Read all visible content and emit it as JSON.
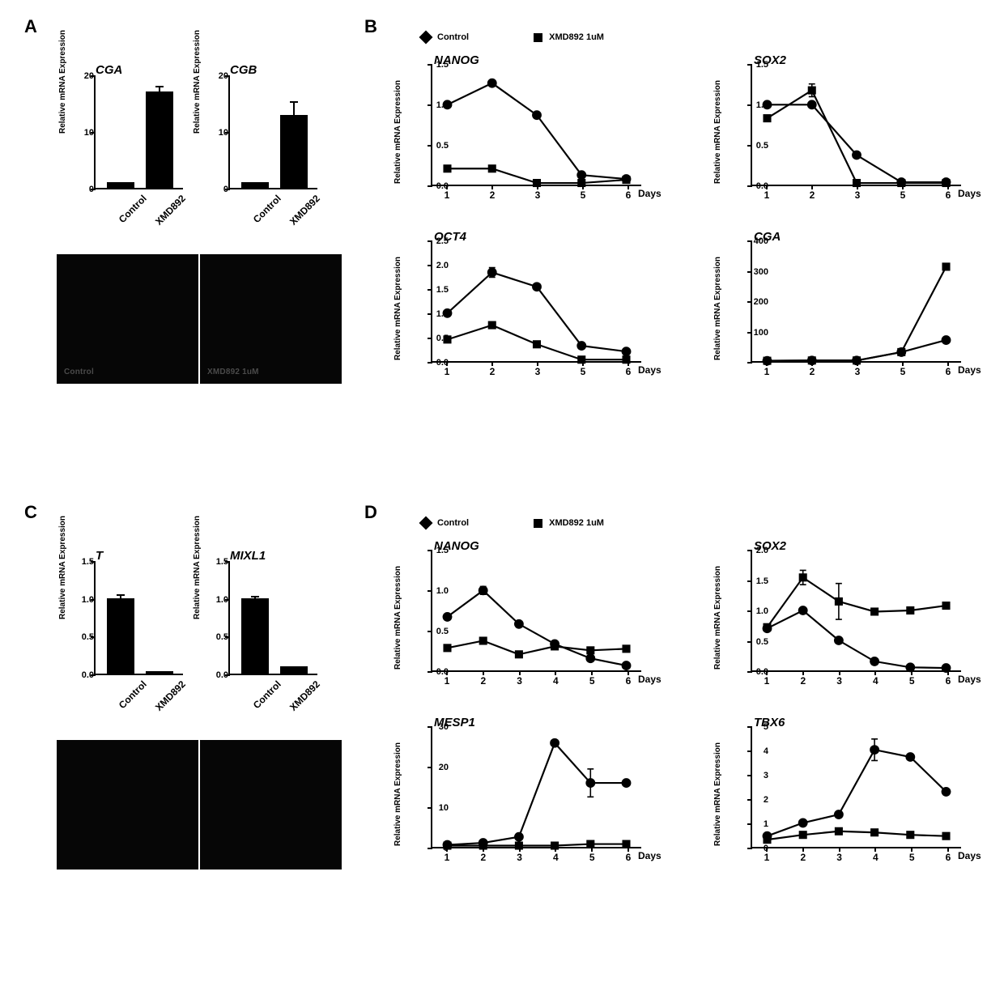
{
  "global": {
    "ylabel": "Relative mRNA Expression",
    "xlabel_days": "Days",
    "color": "#000000",
    "background": "#ffffff",
    "axis_width": 2.5,
    "line_width": 2.2,
    "marker_size": 6,
    "font_axis": 11,
    "font_title": 15
  },
  "legend": {
    "control": {
      "label": "Control",
      "marker": "diamond"
    },
    "treated": {
      "label": "XMD892 1uM",
      "marker": "square"
    }
  },
  "panels": {
    "A": {
      "label": "A",
      "bars": [
        {
          "title": "CGA",
          "categories": [
            "Control",
            "XMD892"
          ],
          "values": [
            1.0,
            17.0
          ],
          "errors": [
            0.0,
            1.0
          ],
          "ylim": [
            0,
            20
          ],
          "yticks": [
            0,
            10,
            20
          ],
          "bar_color": "#000000"
        },
        {
          "title": "CGB",
          "categories": [
            "Control",
            "XMD892"
          ],
          "values": [
            1.0,
            12.8
          ],
          "errors": [
            0.0,
            2.5
          ],
          "ylim": [
            0,
            20
          ],
          "yticks": [
            0,
            10,
            20
          ],
          "bar_color": "#000000"
        }
      ],
      "micrographs": [
        {
          "label": "Control"
        },
        {
          "label": "XMD892 1uM"
        }
      ]
    },
    "B": {
      "label": "B",
      "charts": [
        {
          "title": "NANOG",
          "x": [
            1,
            2,
            3,
            5,
            6
          ],
          "series": {
            "control": {
              "y": [
                1.0,
                1.27,
                0.87,
                0.12,
                0.07
              ],
              "err": [
                0,
                0,
                0,
                0,
                0
              ]
            },
            "treated": {
              "y": [
                0.2,
                0.2,
                0.02,
                0.02,
                0.06
              ],
              "err": [
                0,
                0,
                0,
                0,
                0
              ]
            }
          },
          "ylim": [
            0,
            1.5
          ],
          "yticks": [
            0.0,
            0.5,
            1.0,
            1.5
          ]
        },
        {
          "title": "SOX2",
          "x": [
            1,
            2,
            3,
            5,
            6
          ],
          "series": {
            "control": {
              "y": [
                1.0,
                1.0,
                0.37,
                0.03,
                0.03
              ],
              "err": [
                0,
                0,
                0,
                0,
                0
              ]
            },
            "treated": {
              "y": [
                0.83,
                1.18,
                0.02,
                0.02,
                0.02
              ],
              "err": [
                0,
                0.08,
                0,
                0,
                0
              ]
            }
          },
          "ylim": [
            0,
            1.5
          ],
          "yticks": [
            0.0,
            0.5,
            1.0,
            1.5
          ]
        },
        {
          "title": "OCT4",
          "x": [
            1,
            2,
            3,
            5,
            6
          ],
          "series": {
            "control": {
              "y": [
                1.0,
                1.85,
                1.55,
                0.32,
                0.2
              ],
              "err": [
                0,
                0.1,
                0,
                0,
                0
              ]
            },
            "treated": {
              "y": [
                0.45,
                0.75,
                0.35,
                0.03,
                0.03
              ],
              "err": [
                0,
                0,
                0,
                0,
                0
              ]
            }
          },
          "ylim": [
            0,
            2.5
          ],
          "yticks": [
            0.0,
            0.5,
            1.0,
            1.5,
            2.0,
            2.5
          ]
        },
        {
          "title": "CGA",
          "x": [
            1,
            2,
            3,
            5,
            6
          ],
          "series": {
            "control": {
              "y": [
                1,
                2,
                2,
                30,
                70
              ],
              "err": [
                0,
                0,
                0,
                0,
                0
              ]
            },
            "treated": {
              "y": [
                1,
                2,
                2,
                30,
                315
              ],
              "err": [
                0,
                0,
                0,
                0,
                0
              ]
            }
          },
          "ylim": [
            0,
            400
          ],
          "yticks": [
            0,
            100,
            200,
            300,
            400
          ]
        }
      ]
    },
    "C": {
      "label": "C",
      "bars": [
        {
          "title": "T",
          "categories": [
            "Control",
            "XMD892"
          ],
          "values": [
            1.0,
            0.03
          ],
          "errors": [
            0.05,
            0.0
          ],
          "ylim": [
            0,
            1.5
          ],
          "yticks": [
            0.0,
            0.5,
            1.0,
            1.5
          ],
          "bar_color": "#000000"
        },
        {
          "title": "MIXL1",
          "categories": [
            "Control",
            "XMD892"
          ],
          "values": [
            1.0,
            0.1
          ],
          "errors": [
            0.03,
            0.0
          ],
          "ylim": [
            0,
            1.5
          ],
          "yticks": [
            0.0,
            0.5,
            1.0,
            1.5
          ],
          "bar_color": "#000000"
        }
      ],
      "micrographs": [
        {
          "label": ""
        },
        {
          "label": ""
        }
      ]
    },
    "D": {
      "label": "D",
      "charts": [
        {
          "title": "NANOG",
          "x": [
            1,
            2,
            3,
            4,
            5,
            6
          ],
          "series": {
            "control": {
              "y": [
                0.67,
                1.0,
                0.58,
                0.33,
                0.15,
                0.06
              ],
              "err": [
                0,
                0.05,
                0,
                0,
                0,
                0
              ]
            },
            "treated": {
              "y": [
                0.28,
                0.37,
                0.2,
                0.3,
                0.25,
                0.27
              ],
              "err": [
                0,
                0,
                0,
                0,
                0,
                0
              ]
            }
          },
          "ylim": [
            0,
            1.5
          ],
          "yticks": [
            0.0,
            0.5,
            1.0,
            1.5
          ]
        },
        {
          "title": "SOX2",
          "x": [
            1,
            2,
            3,
            4,
            5,
            6
          ],
          "series": {
            "control": {
              "y": [
                0.7,
                1.0,
                0.5,
                0.15,
                0.05,
                0.04
              ],
              "err": [
                0,
                0,
                0,
                0,
                0,
                0
              ]
            },
            "treated": {
              "y": [
                0.72,
                1.55,
                1.15,
                0.98,
                1.0,
                1.08
              ],
              "err": [
                0,
                0.12,
                0.3,
                0,
                0,
                0
              ]
            }
          },
          "ylim": [
            0,
            2.0
          ],
          "yticks": [
            0.0,
            0.5,
            1.0,
            1.5,
            2.0
          ]
        },
        {
          "title": "MESP1",
          "x": [
            1,
            2,
            3,
            4,
            5,
            6
          ],
          "series": {
            "control": {
              "y": [
                0.5,
                1.0,
                2.5,
                26,
                16,
                16
              ],
              "err": [
                0,
                0,
                0,
                0,
                3.5,
                0
              ]
            },
            "treated": {
              "y": [
                0.3,
                0.3,
                0.3,
                0.3,
                0.7,
                0.7
              ],
              "err": [
                0,
                0,
                0,
                0,
                0,
                0
              ]
            }
          },
          "ylim": [
            0,
            30
          ],
          "yticks": [
            0,
            10,
            20,
            30
          ]
        },
        {
          "title": "TBX6",
          "x": [
            1,
            2,
            3,
            4,
            5,
            6
          ],
          "series": {
            "control": {
              "y": [
                0.45,
                1.0,
                1.35,
                4.05,
                3.75,
                2.3
              ],
              "err": [
                0,
                0,
                0,
                0.45,
                0,
                0
              ]
            },
            "treated": {
              "y": [
                0.3,
                0.5,
                0.65,
                0.6,
                0.5,
                0.45
              ],
              "err": [
                0,
                0,
                0,
                0,
                0,
                0
              ]
            }
          },
          "ylim": [
            0,
            5
          ],
          "yticks": [
            0,
            1,
            2,
            3,
            4,
            5
          ]
        }
      ]
    }
  }
}
